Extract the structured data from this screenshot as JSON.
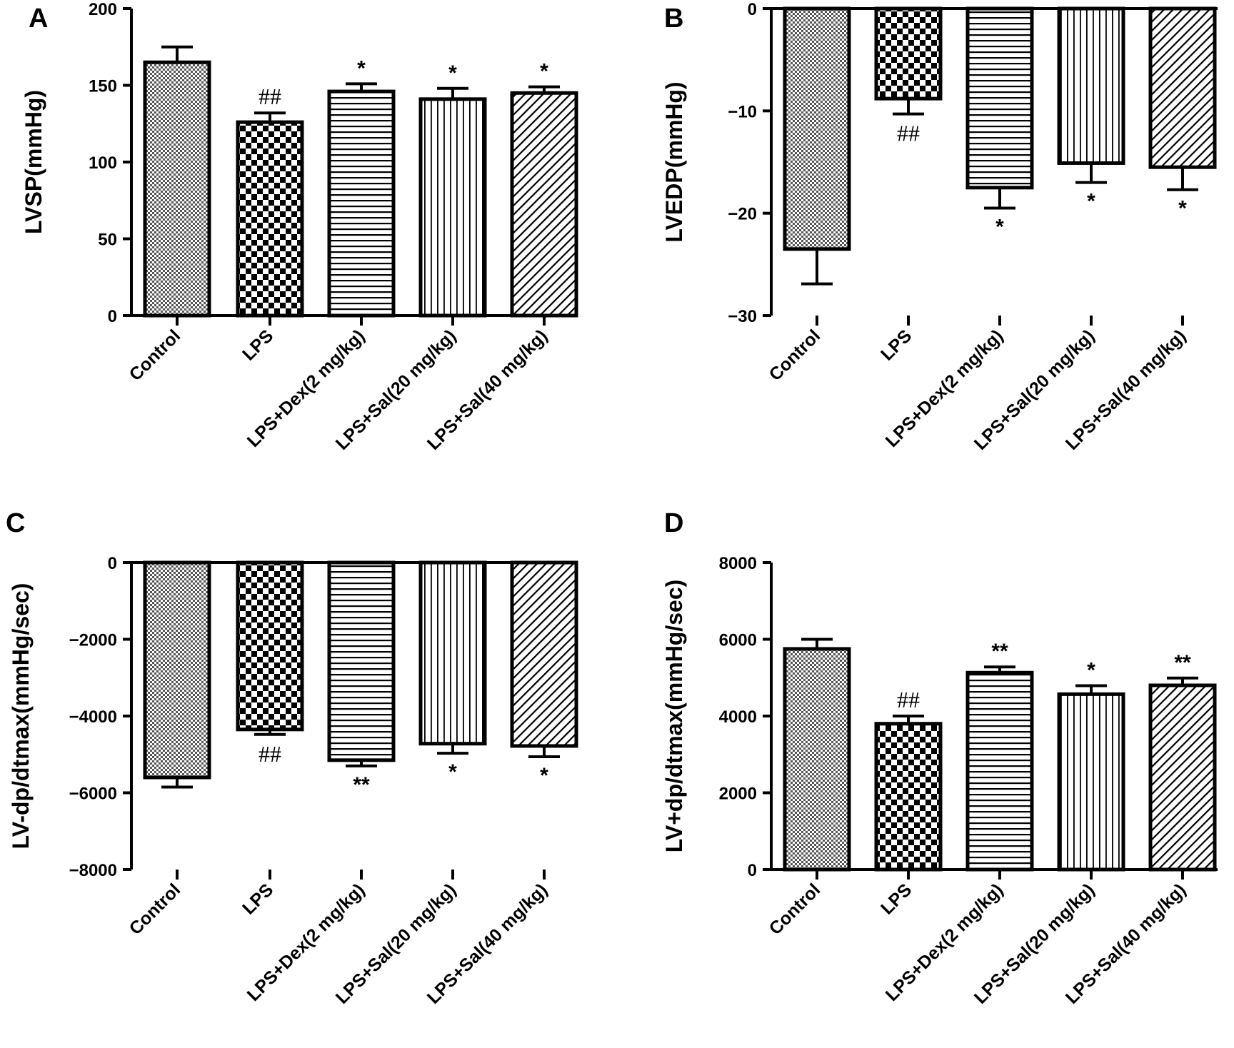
{
  "chart_data": [
    {
      "type": "bar",
      "panel": "A",
      "ylabel": "LVSP(mmHg)",
      "ylim": [
        0,
        200
      ],
      "yticks": [
        0,
        50,
        100,
        150,
        200
      ],
      "categories": [
        "Control",
        "LPS",
        "LPS+Dex(2 mg/kg)",
        "LPS+Sal(20 mg/kg)",
        "LPS+Sal(40 mg/kg)"
      ],
      "values": [
        165,
        126,
        146,
        141,
        145
      ],
      "errors": [
        10,
        6,
        5,
        7,
        4
      ],
      "annotations": [
        "",
        "##",
        "*",
        "*",
        "*"
      ],
      "patterns": [
        "dots",
        "checker",
        "horizontal",
        "vertical",
        "diagonal"
      ]
    },
    {
      "type": "bar",
      "panel": "B",
      "ylabel": "LVEDP(mmHg)",
      "ylim": [
        -30,
        0
      ],
      "yticks": [
        0,
        -10,
        -20,
        -30
      ],
      "categories": [
        "Control",
        "LPS",
        "LPS+Dex(2 mg/kg)",
        "LPS+Sal(20 mg/kg)",
        "LPS+Sal(40 mg/kg)"
      ],
      "values": [
        -23.5,
        -8.8,
        -17.5,
        -15.1,
        -15.5
      ],
      "errors": [
        3.4,
        1.5,
        2.0,
        1.9,
        2.2
      ],
      "annotations": [
        "",
        "##",
        "*",
        "*",
        "*"
      ],
      "patterns": [
        "dots",
        "checker",
        "horizontal",
        "vertical",
        "diagonal"
      ]
    },
    {
      "type": "bar",
      "panel": "C",
      "ylabel": "LV-dp/dtmax(mmHg/sec)",
      "ylim": [
        -8000,
        0
      ],
      "yticks": [
        0,
        -2000,
        -4000,
        -6000,
        -8000
      ],
      "categories": [
        "Control",
        "LPS",
        "LPS+Dex(2 mg/kg)",
        "LPS+Sal(20 mg/kg)",
        "LPS+Sal(40 mg/kg)"
      ],
      "values": [
        -5600,
        -4350,
        -5150,
        -4720,
        -4780
      ],
      "errors": [
        250,
        130,
        150,
        250,
        280
      ],
      "annotations": [
        "",
        "##",
        "**",
        "*",
        "*"
      ],
      "patterns": [
        "dots",
        "checker",
        "horizontal",
        "vertical",
        "diagonal"
      ]
    },
    {
      "type": "bar",
      "panel": "D",
      "ylabel": "LV+dp/dtmax(mmHg/sec)",
      "ylim": [
        0,
        8000
      ],
      "yticks": [
        0,
        2000,
        4000,
        6000,
        8000
      ],
      "categories": [
        "Control",
        "LPS",
        "LPS+Dex(2 mg/kg)",
        "LPS+Sal(20 mg/kg)",
        "LPS+Sal(40 mg/kg)"
      ],
      "values": [
        5750,
        3800,
        5130,
        4570,
        4800
      ],
      "errors": [
        250,
        200,
        150,
        220,
        190
      ],
      "annotations": [
        "",
        "##",
        "**",
        "*",
        "**"
      ],
      "patterns": [
        "dots",
        "checker",
        "horizontal",
        "vertical",
        "diagonal"
      ]
    }
  ]
}
